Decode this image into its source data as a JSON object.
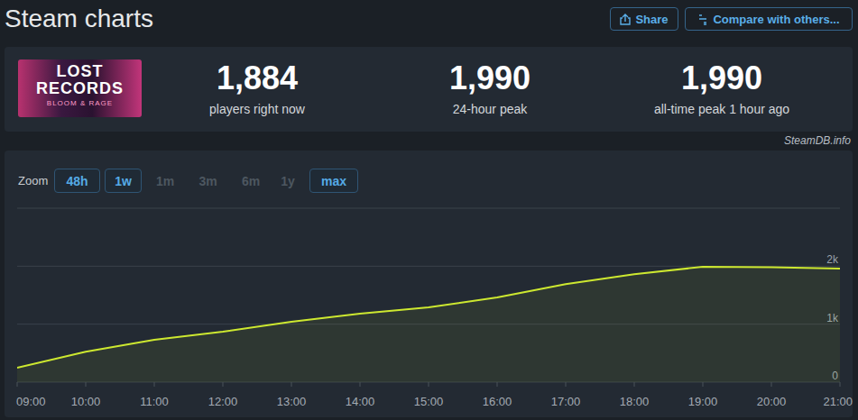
{
  "header": {
    "title": "Steam charts",
    "buttons": [
      "Share",
      "Compare with others..."
    ]
  },
  "game": {
    "logo_title": "LOST",
    "logo_title_2": "RECORDS",
    "logo_subtitle": "BLOOM & RAGE"
  },
  "stats": [
    {
      "value": "1,884",
      "label": "players right now"
    },
    {
      "value": "1,990",
      "label": "24-hour peak"
    },
    {
      "value": "1,990",
      "label": "all-time peak 1 hour ago"
    }
  ],
  "source": "SteamDB.info",
  "zoom": {
    "label": "Zoom",
    "options": [
      {
        "label": "48h",
        "active": true
      },
      {
        "label": "1w",
        "active": true
      },
      {
        "label": "1m",
        "active": false
      },
      {
        "label": "3m",
        "active": false
      },
      {
        "label": "6m",
        "active": false
      },
      {
        "label": "1y",
        "active": false
      },
      {
        "label": "max",
        "active": true
      }
    ]
  },
  "chart_data": {
    "type": "area",
    "categories": [
      "09:00",
      "10:00",
      "11:00",
      "12:00",
      "13:00",
      "14:00",
      "15:00",
      "16:00",
      "17:00",
      "18:00",
      "19:00",
      "20:00",
      "21:00"
    ],
    "values": [
      250,
      525,
      730,
      870,
      1040,
      1180,
      1290,
      1460,
      1690,
      1860,
      1990,
      1980,
      1960
    ],
    "color": "#cde830",
    "ylim": [
      0,
      3000
    ],
    "yticks": [
      0,
      {
        "value": 1000,
        "label": "1k"
      },
      {
        "value": 2000,
        "label": "2k"
      }
    ],
    "grid": true
  }
}
